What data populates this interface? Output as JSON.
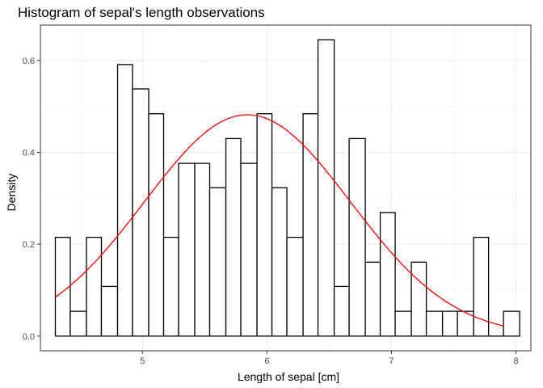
{
  "chart_data": {
    "type": "bar",
    "title": "Histogram of sepal's length observations",
    "xlabel": "Length of sepal [cm]",
    "ylabel": "Density",
    "xlim": [
      4.18,
      8.12
    ],
    "ylim": [
      -0.032,
      0.677
    ],
    "x_ticks": [
      5,
      6,
      7,
      8
    ],
    "y_ticks": [
      0.0,
      0.2,
      0.4,
      0.6
    ],
    "x_tick_labels": [
      "5",
      "6",
      "7",
      "8"
    ],
    "y_tick_labels": [
      "0.0",
      "0.2",
      "0.4",
      "0.6"
    ],
    "grid": true,
    "bin_width": 0.124,
    "bins": [
      {
        "x0": 4.3,
        "x1": 4.42,
        "density": 0.215
      },
      {
        "x0": 4.42,
        "x1": 4.55,
        "density": 0.054
      },
      {
        "x0": 4.55,
        "x1": 4.67,
        "density": 0.215
      },
      {
        "x0": 4.67,
        "x1": 4.8,
        "density": 0.108
      },
      {
        "x0": 4.8,
        "x1": 4.92,
        "density": 0.591
      },
      {
        "x0": 4.92,
        "x1": 5.05,
        "density": 0.538
      },
      {
        "x0": 5.05,
        "x1": 5.17,
        "density": 0.484
      },
      {
        "x0": 5.17,
        "x1": 5.29,
        "density": 0.215
      },
      {
        "x0": 5.29,
        "x1": 5.42,
        "density": 0.376
      },
      {
        "x0": 5.42,
        "x1": 5.54,
        "density": 0.376
      },
      {
        "x0": 5.54,
        "x1": 5.67,
        "density": 0.323
      },
      {
        "x0": 5.67,
        "x1": 5.79,
        "density": 0.43
      },
      {
        "x0": 5.79,
        "x1": 5.92,
        "density": 0.376
      },
      {
        "x0": 5.92,
        "x1": 6.04,
        "density": 0.484
      },
      {
        "x0": 6.04,
        "x1": 6.16,
        "density": 0.323
      },
      {
        "x0": 6.16,
        "x1": 6.29,
        "density": 0.215
      },
      {
        "x0": 6.29,
        "x1": 6.41,
        "density": 0.484
      },
      {
        "x0": 6.41,
        "x1": 6.54,
        "density": 0.645
      },
      {
        "x0": 6.54,
        "x1": 6.66,
        "density": 0.108
      },
      {
        "x0": 6.66,
        "x1": 6.79,
        "density": 0.43
      },
      {
        "x0": 6.79,
        "x1": 6.91,
        "density": 0.161
      },
      {
        "x0": 6.91,
        "x1": 7.03,
        "density": 0.269
      },
      {
        "x0": 7.03,
        "x1": 7.16,
        "density": 0.054
      },
      {
        "x0": 7.16,
        "x1": 7.28,
        "density": 0.161
      },
      {
        "x0": 7.28,
        "x1": 7.41,
        "density": 0.054
      },
      {
        "x0": 7.41,
        "x1": 7.53,
        "density": 0.054
      },
      {
        "x0": 7.53,
        "x1": 7.66,
        "density": 0.054
      },
      {
        "x0": 7.66,
        "x1": 7.78,
        "density": 0.215
      },
      {
        "x0": 7.78,
        "x1": 7.9,
        "density": 0.0
      },
      {
        "x0": 7.9,
        "x1": 8.03,
        "density": 0.054
      }
    ],
    "density_curve": {
      "distribution": "normal",
      "mean": 5.843,
      "sd": 0.828,
      "x_range": [
        4.3,
        7.9
      ],
      "color": "#ff0000"
    },
    "bar_fill": "#ffffff",
    "bar_stroke": "#000000"
  }
}
